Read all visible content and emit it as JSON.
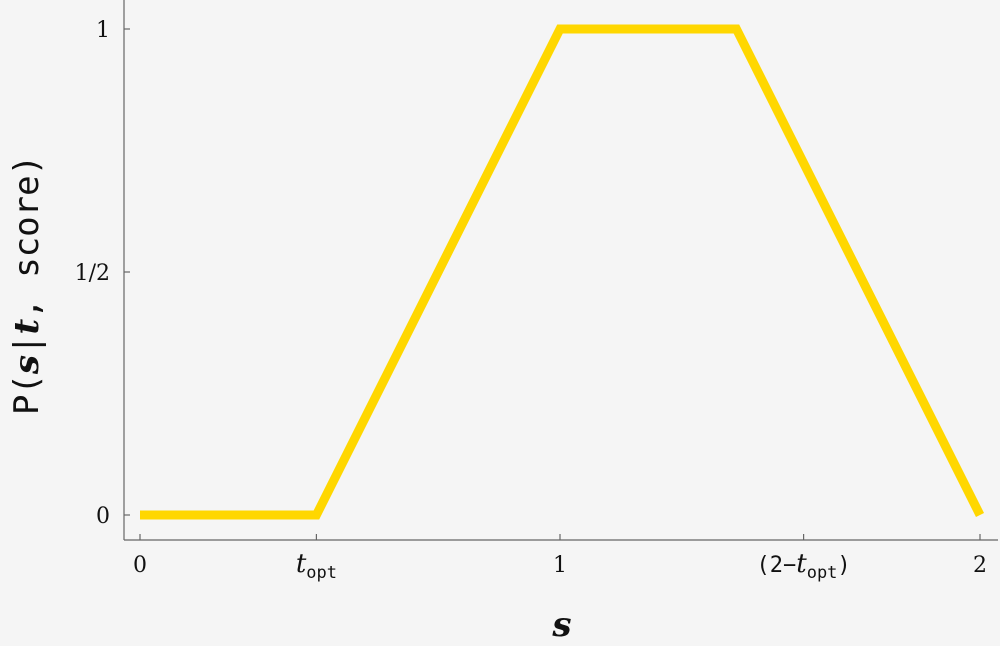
{
  "chart_data": {
    "type": "line",
    "x_axis": {
      "label": "s",
      "range": [
        0,
        2
      ],
      "ticks": [
        {
          "value": 0,
          "label": "0"
        },
        {
          "value": 0.42,
          "label": "t",
          "subscript": "opt"
        },
        {
          "value": 1,
          "label": "1"
        },
        {
          "value": 1.58,
          "label": "(2−t",
          "subscript": "opt",
          "suffix": ")"
        },
        {
          "value": 2,
          "label": "2"
        }
      ]
    },
    "y_axis": {
      "label": "P(s|t, score)",
      "label_parts": [
        "P(",
        "s",
        "|",
        "t",
        ", score)"
      ],
      "range": [
        0,
        1
      ],
      "ticks": [
        {
          "value": 0,
          "label": "0"
        },
        {
          "value": 0.5,
          "label": "1/2"
        },
        {
          "value": 1,
          "label": "1"
        }
      ]
    },
    "series": [
      {
        "color": "#ffd700",
        "points": [
          [
            0,
            0
          ],
          [
            0.42,
            0
          ],
          [
            1,
            1
          ],
          [
            1.42,
            1
          ],
          [
            2,
            0
          ]
        ]
      }
    ],
    "grid": false,
    "legend": "none"
  }
}
